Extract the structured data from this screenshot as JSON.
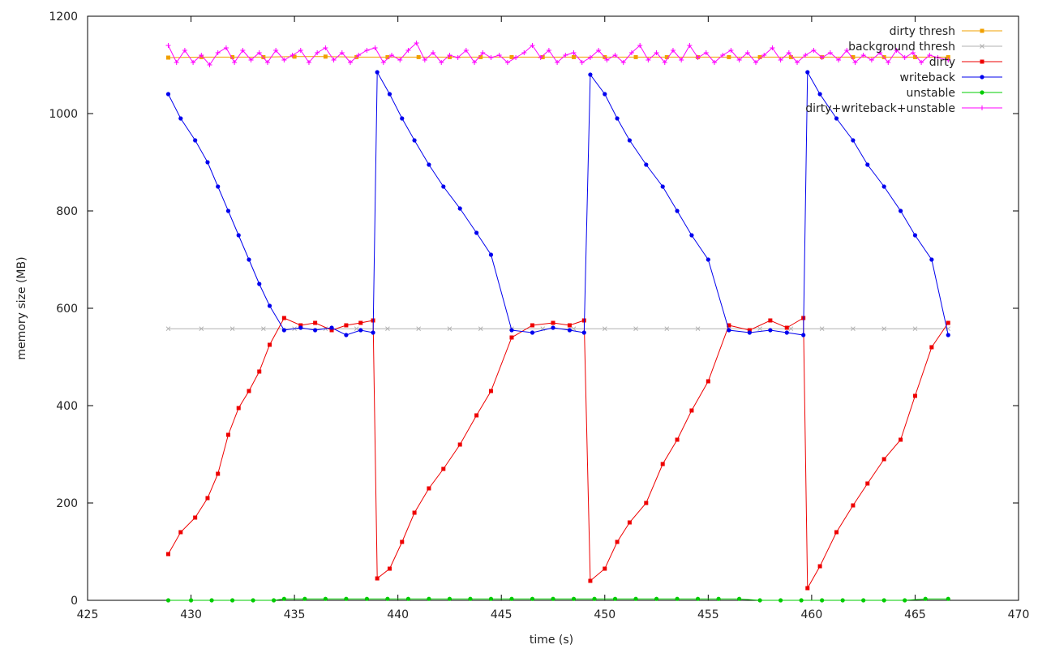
{
  "chart_data": {
    "type": "line",
    "xlabel": "time (s)",
    "ylabel": "memory size (MB)",
    "xlim": [
      425,
      470
    ],
    "ylim": [
      0,
      1200
    ],
    "x_ticks": [
      425,
      430,
      435,
      440,
      445,
      450,
      455,
      460,
      465,
      470
    ],
    "y_ticks": [
      0,
      200,
      400,
      600,
      800,
      1000,
      1200
    ],
    "grid": false,
    "legend_position": "top-right",
    "series": [
      {
        "name": "dirty thresh",
        "color": "#f0a000",
        "marker": "square",
        "x": [
          428.9,
          430.5,
          432.0,
          433.5,
          435.0,
          436.5,
          438.0,
          439.5,
          441.0,
          442.5,
          444.0,
          445.5,
          447.0,
          448.5,
          450.0,
          451.5,
          453.0,
          454.5,
          456.0,
          457.5,
          459.0,
          460.5,
          462.0,
          463.5,
          465.0,
          466.6
        ],
        "y": [
          1115,
          1116,
          1116,
          1116,
          1117,
          1117,
          1116,
          1116,
          1116,
          1116,
          1116,
          1116,
          1116,
          1116,
          1116,
          1116,
          1116,
          1116,
          1116,
          1116,
          1116,
          1116,
          1116,
          1116,
          1116,
          1116
        ]
      },
      {
        "name": "background thresh",
        "color": "#b0b0b0",
        "marker": "x",
        "x": [
          428.9,
          430.5,
          432.0,
          433.5,
          435.0,
          436.5,
          438.0,
          439.5,
          441.0,
          442.5,
          444.0,
          445.5,
          447.0,
          448.5,
          450.0,
          451.5,
          453.0,
          454.5,
          456.0,
          457.5,
          459.0,
          460.5,
          462.0,
          463.5,
          465.0,
          466.6
        ],
        "y": [
          558,
          558,
          558,
          558,
          558,
          558,
          558,
          558,
          558,
          558,
          558,
          558,
          558,
          558,
          558,
          558,
          558,
          558,
          558,
          558,
          558,
          558,
          558,
          558,
          558,
          558
        ]
      },
      {
        "name": "dirty",
        "color": "#ee0000",
        "marker": "square",
        "x": [
          428.9,
          429.5,
          430.2,
          430.8,
          431.3,
          431.8,
          432.3,
          432.8,
          433.3,
          433.8,
          434.5,
          435.3,
          436.0,
          436.8,
          437.5,
          438.2,
          438.8,
          439.0,
          439.6,
          440.2,
          440.8,
          441.5,
          442.2,
          443.0,
          443.8,
          444.5,
          445.5,
          446.5,
          447.5,
          448.3,
          449.0,
          449.3,
          450.0,
          450.6,
          451.2,
          452.0,
          452.8,
          453.5,
          454.2,
          455.0,
          456.0,
          457.0,
          458.0,
          458.8,
          459.6,
          459.8,
          460.4,
          461.2,
          462.0,
          462.7,
          463.5,
          464.3,
          465.0,
          465.8,
          466.6
        ],
        "y": [
          95,
          140,
          170,
          210,
          260,
          340,
          395,
          430,
          470,
          525,
          580,
          565,
          570,
          555,
          565,
          570,
          575,
          45,
          65,
          120,
          180,
          230,
          270,
          320,
          380,
          430,
          540,
          565,
          570,
          565,
          575,
          40,
          65,
          120,
          160,
          200,
          280,
          330,
          390,
          450,
          565,
          555,
          575,
          560,
          580,
          25,
          70,
          140,
          195,
          240,
          290,
          330,
          420,
          520,
          570
        ]
      },
      {
        "name": "writeback",
        "color": "#0000ee",
        "marker": "circle",
        "x": [
          428.9,
          429.5,
          430.2,
          430.8,
          431.3,
          431.8,
          432.3,
          432.8,
          433.3,
          433.8,
          434.5,
          435.3,
          436.0,
          436.8,
          437.5,
          438.2,
          438.8,
          439.0,
          439.6,
          440.2,
          440.8,
          441.5,
          442.2,
          443.0,
          443.8,
          444.5,
          445.5,
          446.5,
          447.5,
          448.3,
          449.0,
          449.3,
          450.0,
          450.6,
          451.2,
          452.0,
          452.8,
          453.5,
          454.2,
          455.0,
          456.0,
          457.0,
          458.0,
          458.8,
          459.6,
          459.8,
          460.4,
          461.2,
          462.0,
          462.7,
          463.5,
          464.3,
          465.0,
          465.8,
          466.6
        ],
        "y": [
          1040,
          990,
          945,
          900,
          850,
          800,
          750,
          700,
          650,
          605,
          555,
          560,
          555,
          560,
          545,
          555,
          550,
          1085,
          1040,
          990,
          945,
          895,
          850,
          805,
          755,
          710,
          555,
          550,
          560,
          555,
          550,
          1080,
          1040,
          990,
          945,
          895,
          850,
          800,
          750,
          700,
          555,
          550,
          555,
          550,
          545,
          1085,
          1040,
          990,
          945,
          895,
          850,
          800,
          750,
          700,
          545
        ]
      },
      {
        "name": "unstable",
        "color": "#00cc00",
        "marker": "circle",
        "x": [
          428.9,
          430.0,
          431.0,
          432.0,
          433.0,
          434.0,
          434.5,
          435.5,
          436.5,
          437.5,
          438.5,
          439.5,
          440.5,
          441.5,
          442.5,
          443.5,
          444.5,
          445.5,
          446.5,
          447.5,
          448.5,
          449.5,
          450.5,
          451.5,
          452.5,
          453.5,
          454.5,
          455.5,
          456.5,
          457.5,
          458.5,
          459.5,
          460.5,
          461.5,
          462.5,
          463.5,
          464.5,
          465.5,
          466.6
        ],
        "y": [
          0,
          0,
          0,
          0,
          0,
          0,
          3,
          3,
          3,
          3,
          3,
          3,
          3,
          3,
          3,
          3,
          3,
          3,
          3,
          3,
          3,
          3,
          3,
          3,
          3,
          3,
          3,
          3,
          3,
          0,
          0,
          0,
          0,
          0,
          0,
          0,
          0,
          3,
          3
        ]
      },
      {
        "name": "dirty+writeback+unstable",
        "color": "#ff00ff",
        "marker": "plus",
        "x": [
          428.9,
          429.3,
          429.7,
          430.1,
          430.5,
          430.9,
          431.3,
          431.7,
          432.1,
          432.5,
          432.9,
          433.3,
          433.7,
          434.1,
          434.5,
          434.9,
          435.3,
          435.7,
          436.1,
          436.5,
          436.9,
          437.3,
          437.7,
          438.1,
          438.5,
          438.9,
          439.3,
          439.7,
          440.1,
          440.5,
          440.9,
          441.3,
          441.7,
          442.1,
          442.5,
          442.9,
          443.3,
          443.7,
          444.1,
          444.5,
          444.9,
          445.3,
          445.7,
          446.1,
          446.5,
          446.9,
          447.3,
          447.7,
          448.1,
          448.5,
          448.9,
          449.3,
          449.7,
          450.1,
          450.5,
          450.9,
          451.3,
          451.7,
          452.1,
          452.5,
          452.9,
          453.3,
          453.7,
          454.1,
          454.5,
          454.9,
          455.3,
          455.7,
          456.1,
          456.5,
          456.9,
          457.3,
          457.7,
          458.1,
          458.5,
          458.9,
          459.3,
          459.7,
          460.1,
          460.5,
          460.9,
          461.3,
          461.7,
          462.1,
          462.5,
          462.9,
          463.3,
          463.7,
          464.1,
          464.5,
          464.9,
          465.3,
          465.7,
          466.1,
          466.6
        ],
        "y": [
          1140,
          1105,
          1130,
          1105,
          1120,
          1100,
          1125,
          1135,
          1105,
          1130,
          1110,
          1125,
          1105,
          1130,
          1110,
          1120,
          1130,
          1105,
          1125,
          1135,
          1110,
          1125,
          1105,
          1120,
          1130,
          1135,
          1105,
          1120,
          1110,
          1130,
          1145,
          1110,
          1125,
          1105,
          1120,
          1115,
          1130,
          1105,
          1125,
          1115,
          1120,
          1105,
          1115,
          1125,
          1140,
          1115,
          1130,
          1105,
          1120,
          1125,
          1105,
          1115,
          1130,
          1110,
          1120,
          1105,
          1125,
          1140,
          1110,
          1125,
          1105,
          1130,
          1110,
          1140,
          1115,
          1125,
          1105,
          1120,
          1130,
          1110,
          1125,
          1105,
          1120,
          1135,
          1110,
          1125,
          1105,
          1120,
          1130,
          1115,
          1125,
          1110,
          1130,
          1105,
          1120,
          1110,
          1125,
          1105,
          1130,
          1115,
          1125,
          1105,
          1120,
          1115,
          1110
        ]
      }
    ]
  }
}
